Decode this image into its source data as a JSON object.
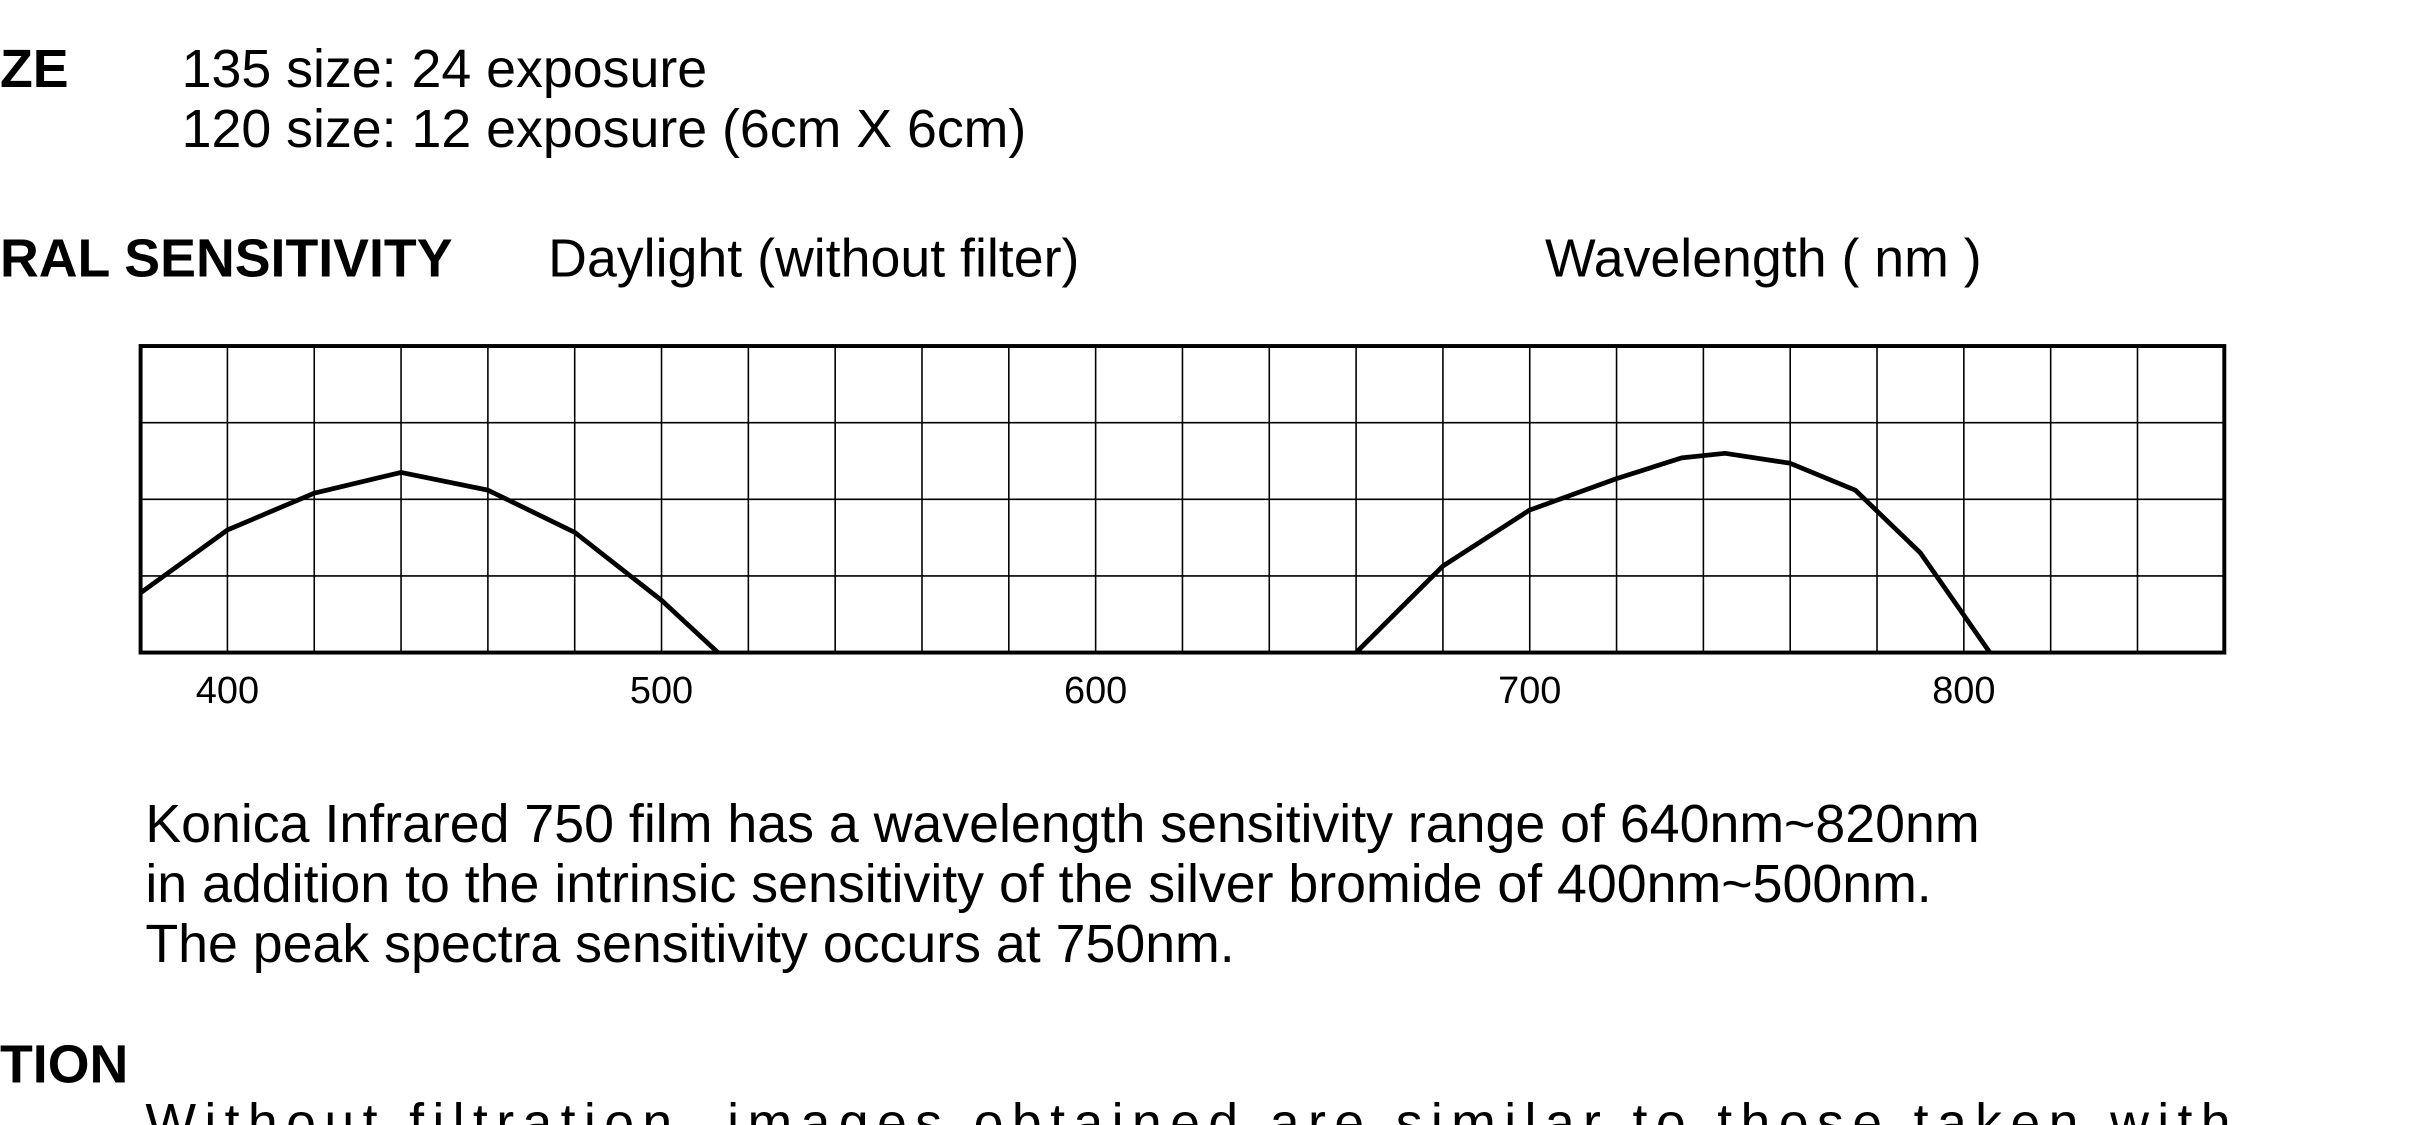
{
  "size": {
    "heading": "ZE",
    "lines": [
      "135 size: 24 exposure",
      "120 size: 12 exposure (6cm X 6cm)"
    ]
  },
  "sensitivity": {
    "heading": "RAL SENSITIVITY",
    "condition": "Daylight (without filter)",
    "chart_data": {
      "type": "line",
      "xlabel": "Wavelength ( nm )",
      "x": [
        380,
        400,
        420,
        440,
        460,
        480,
        500,
        513,
        600,
        660,
        680,
        700,
        720,
        735,
        745,
        760,
        775,
        790,
        806
      ],
      "values": [
        0.78,
        1.6,
        2.08,
        2.35,
        2.12,
        1.57,
        0.68,
        0,
        null,
        0,
        1.13,
        1.86,
        2.27,
        2.54,
        2.6,
        2.47,
        2.12,
        1.3,
        0
      ],
      "color": "#000000",
      "xlim": [
        380,
        860
      ],
      "xticks": [
        400,
        500,
        600,
        700,
        800
      ],
      "ylim": [
        0,
        4
      ],
      "grid": true
    },
    "description": [
      "Konica Infrared 750 film has a wavelength sensitivity range of 640nm~820nm",
      "in addition to the intrinsic sensitivity of the silver bromide of 400nm~500nm.",
      "The peak spectra sensitivity occurs at 750nm."
    ]
  },
  "filtration": {
    "heading": "TION",
    "text": "Without filtration, images obtained are similar to those taken with"
  }
}
